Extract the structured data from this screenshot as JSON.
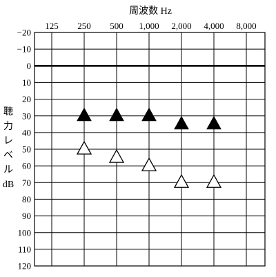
{
  "chart_data": {
    "type": "scatter",
    "xlabel": "周波数 Hz",
    "ylabel": "聴力レベル dB",
    "x_scale": "log2",
    "categories": [
      "125",
      "250",
      "500",
      "1,000",
      "2,000",
      "4,000",
      "8,000"
    ],
    "y_ticks": [
      "−20",
      "−10",
      "0",
      "10",
      "20",
      "30",
      "40",
      "50",
      "60",
      "70",
      "80",
      "90",
      "100",
      "110",
      "120"
    ],
    "ylim": [
      -20,
      120
    ],
    "y_inverted": true,
    "grid": true,
    "emphasized_line_value": 0,
    "series": [
      {
        "marker": "filled-triangle",
        "color": "#000000",
        "x": [
          "250",
          "500",
          "1,000",
          "2,000",
          "4,000"
        ],
        "values": [
          30,
          30,
          30,
          35,
          35
        ]
      },
      {
        "marker": "open-triangle",
        "color": "#000000",
        "x": [
          "250",
          "500",
          "1,000",
          "2,000",
          "4,000"
        ],
        "values": [
          50,
          55,
          60,
          70,
          70
        ]
      }
    ]
  },
  "colors": {
    "line": "#000000",
    "background": "#ffffff"
  }
}
